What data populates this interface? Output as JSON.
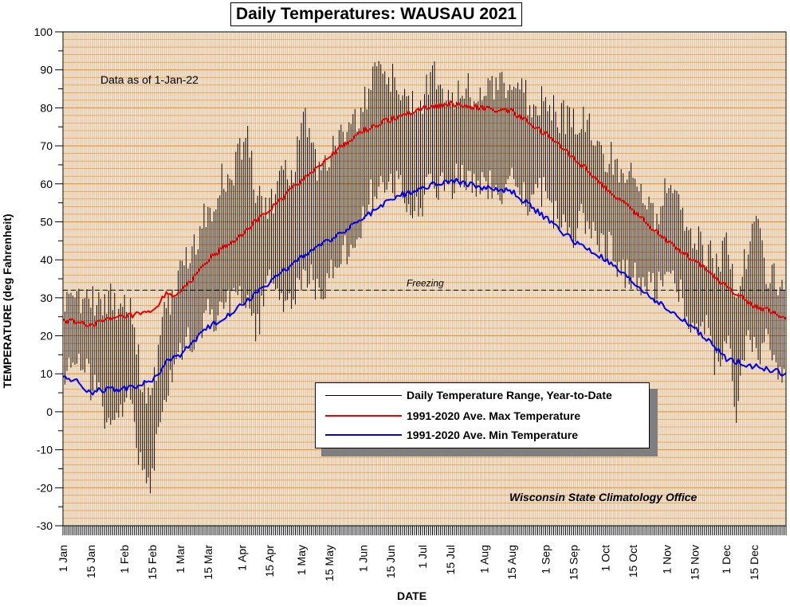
{
  "chart_data": {
    "type": "line",
    "title": "Daily Temperatures: WAUSAU 2021",
    "note": "Data as of 1-Jan-22",
    "credit": "Wisconsin State Climatology Office",
    "xlabel": "DATE",
    "ylabel": "TEMPERATURE (deg Fahrenheit)",
    "ylim": [
      -30,
      100
    ],
    "xlim_day_of_year": [
      1,
      365
    ],
    "grid": true,
    "y_ticks": [
      100,
      90,
      80,
      70,
      60,
      50,
      40,
      30,
      20,
      10,
      0,
      -10,
      -20,
      -30
    ],
    "x_ticks": [
      {
        "day": 1,
        "label": "1 Jan"
      },
      {
        "day": 15,
        "label": "15 Jan"
      },
      {
        "day": 32,
        "label": "1 Feb"
      },
      {
        "day": 46,
        "label": "15 Feb"
      },
      {
        "day": 60,
        "label": "1 Mar"
      },
      {
        "day": 74,
        "label": "15 Mar"
      },
      {
        "day": 91,
        "label": "1 Apr"
      },
      {
        "day": 105,
        "label": "15 Apr"
      },
      {
        "day": 121,
        "label": "1 May"
      },
      {
        "day": 135,
        "label": "15 May"
      },
      {
        "day": 152,
        "label": "1 Jun"
      },
      {
        "day": 166,
        "label": "15 Jun"
      },
      {
        "day": 182,
        "label": "1 Jul"
      },
      {
        "day": 196,
        "label": "15 Jul"
      },
      {
        "day": 213,
        "label": "1 Aug"
      },
      {
        "day": 227,
        "label": "15 Aug"
      },
      {
        "day": 244,
        "label": "1 Sep"
      },
      {
        "day": 258,
        "label": "15 Sep"
      },
      {
        "day": 274,
        "label": "1 Oct"
      },
      {
        "day": 288,
        "label": "15 Oct"
      },
      {
        "day": 305,
        "label": "1 Nov"
      },
      {
        "day": 319,
        "label": "15 Nov"
      },
      {
        "day": 335,
        "label": "1 Dec"
      },
      {
        "day": 349,
        "label": "15 Dec"
      }
    ],
    "reference_line": {
      "value": 32,
      "label": "Freezing"
    },
    "legend_placement": "bottom-center",
    "series": [
      {
        "name": "Daily Temperature Range, Year-to-Date",
        "color": "#000000",
        "kind": "daily-range",
        "anchors": [
          {
            "day": 1,
            "low": 10,
            "high": 27
          },
          {
            "day": 8,
            "low": 12,
            "high": 30
          },
          {
            "day": 15,
            "low": 8,
            "high": 30
          },
          {
            "day": 22,
            "low": 0,
            "high": 30
          },
          {
            "day": 28,
            "low": 2,
            "high": 28
          },
          {
            "day": 35,
            "low": 5,
            "high": 30
          },
          {
            "day": 40,
            "low": -15,
            "high": 10
          },
          {
            "day": 46,
            "low": -17,
            "high": 3
          },
          {
            "day": 50,
            "low": -3,
            "high": 20
          },
          {
            "day": 55,
            "low": 8,
            "high": 30
          },
          {
            "day": 60,
            "low": 18,
            "high": 35
          },
          {
            "day": 67,
            "low": 20,
            "high": 45
          },
          {
            "day": 74,
            "low": 25,
            "high": 52
          },
          {
            "day": 80,
            "low": 25,
            "high": 60
          },
          {
            "day": 88,
            "low": 30,
            "high": 65
          },
          {
            "day": 94,
            "low": 30,
            "high": 75
          },
          {
            "day": 98,
            "low": 22,
            "high": 55
          },
          {
            "day": 105,
            "low": 33,
            "high": 55
          },
          {
            "day": 112,
            "low": 30,
            "high": 62
          },
          {
            "day": 118,
            "low": 32,
            "high": 65
          },
          {
            "day": 122,
            "low": 35,
            "high": 78
          },
          {
            "day": 128,
            "low": 34,
            "high": 65
          },
          {
            "day": 135,
            "low": 35,
            "high": 68
          },
          {
            "day": 141,
            "low": 42,
            "high": 72
          },
          {
            "day": 148,
            "low": 46,
            "high": 75
          },
          {
            "day": 152,
            "low": 50,
            "high": 80
          },
          {
            "day": 157,
            "low": 58,
            "high": 90
          },
          {
            "day": 162,
            "low": 58,
            "high": 93
          },
          {
            "day": 166,
            "low": 60,
            "high": 88
          },
          {
            "day": 170,
            "low": 58,
            "high": 85
          },
          {
            "day": 176,
            "low": 55,
            "high": 82
          },
          {
            "day": 182,
            "low": 55,
            "high": 82
          },
          {
            "day": 187,
            "low": 60,
            "high": 88
          },
          {
            "day": 192,
            "low": 58,
            "high": 85
          },
          {
            "day": 196,
            "low": 60,
            "high": 82
          },
          {
            "day": 205,
            "low": 62,
            "high": 85
          },
          {
            "day": 213,
            "low": 60,
            "high": 85
          },
          {
            "day": 220,
            "low": 58,
            "high": 84
          },
          {
            "day": 227,
            "low": 60,
            "high": 86
          },
          {
            "day": 235,
            "low": 55,
            "high": 82
          },
          {
            "day": 244,
            "low": 58,
            "high": 82
          },
          {
            "day": 250,
            "low": 50,
            "high": 78
          },
          {
            "day": 258,
            "low": 48,
            "high": 76
          },
          {
            "day": 265,
            "low": 52,
            "high": 77
          },
          {
            "day": 274,
            "low": 44,
            "high": 68
          },
          {
            "day": 280,
            "low": 40,
            "high": 65
          },
          {
            "day": 288,
            "low": 35,
            "high": 60
          },
          {
            "day": 294,
            "low": 32,
            "high": 55
          },
          {
            "day": 300,
            "low": 34,
            "high": 52
          },
          {
            "day": 305,
            "low": 36,
            "high": 58
          },
          {
            "day": 310,
            "low": 35,
            "high": 60
          },
          {
            "day": 315,
            "low": 25,
            "high": 50
          },
          {
            "day": 319,
            "low": 22,
            "high": 45
          },
          {
            "day": 325,
            "low": 22,
            "high": 42
          },
          {
            "day": 330,
            "low": 12,
            "high": 40
          },
          {
            "day": 335,
            "low": 22,
            "high": 44
          },
          {
            "day": 340,
            "low": 0,
            "high": 30
          },
          {
            "day": 345,
            "low": 18,
            "high": 42
          },
          {
            "day": 350,
            "low": 15,
            "high": 50
          },
          {
            "day": 355,
            "low": 18,
            "high": 38
          },
          {
            "day": 360,
            "low": 10,
            "high": 35
          },
          {
            "day": 365,
            "low": 8,
            "high": 28
          }
        ]
      },
      {
        "name": "1991-2020 Ave. Max Temperature",
        "color": "#ee0000",
        "kind": "line",
        "anchors": [
          {
            "day": 1,
            "value": 24
          },
          {
            "day": 15,
            "value": 23
          },
          {
            "day": 32,
            "value": 25
          },
          {
            "day": 46,
            "value": 26
          },
          {
            "day": 53,
            "value": 31
          },
          {
            "day": 60,
            "value": 31
          },
          {
            "day": 74,
            "value": 40
          },
          {
            "day": 91,
            "value": 47
          },
          {
            "day": 105,
            "value": 53
          },
          {
            "day": 121,
            "value": 61
          },
          {
            "day": 135,
            "value": 67
          },
          {
            "day": 152,
            "value": 74
          },
          {
            "day": 166,
            "value": 77
          },
          {
            "day": 182,
            "value": 80
          },
          {
            "day": 196,
            "value": 81
          },
          {
            "day": 213,
            "value": 80
          },
          {
            "day": 227,
            "value": 79
          },
          {
            "day": 244,
            "value": 73
          },
          {
            "day": 258,
            "value": 67
          },
          {
            "day": 274,
            "value": 59
          },
          {
            "day": 288,
            "value": 53
          },
          {
            "day": 305,
            "value": 45
          },
          {
            "day": 319,
            "value": 40
          },
          {
            "day": 335,
            "value": 33
          },
          {
            "day": 349,
            "value": 28
          },
          {
            "day": 365,
            "value": 25
          }
        ]
      },
      {
        "name": "1991-2020 Ave. Min Temperature",
        "color": "#0000ee",
        "kind": "line",
        "anchors": [
          {
            "day": 1,
            "value": 9
          },
          {
            "day": 8,
            "value": 8
          },
          {
            "day": 15,
            "value": 5
          },
          {
            "day": 22,
            "value": 6
          },
          {
            "day": 32,
            "value": 6
          },
          {
            "day": 46,
            "value": 8
          },
          {
            "day": 53,
            "value": 13
          },
          {
            "day": 60,
            "value": 15
          },
          {
            "day": 74,
            "value": 22
          },
          {
            "day": 91,
            "value": 28
          },
          {
            "day": 105,
            "value": 34
          },
          {
            "day": 121,
            "value": 41
          },
          {
            "day": 135,
            "value": 45
          },
          {
            "day": 152,
            "value": 51
          },
          {
            "day": 166,
            "value": 56
          },
          {
            "day": 182,
            "value": 59
          },
          {
            "day": 196,
            "value": 61
          },
          {
            "day": 213,
            "value": 59
          },
          {
            "day": 227,
            "value": 58
          },
          {
            "day": 244,
            "value": 51
          },
          {
            "day": 258,
            "value": 45
          },
          {
            "day": 274,
            "value": 40
          },
          {
            "day": 288,
            "value": 34
          },
          {
            "day": 305,
            "value": 27
          },
          {
            "day": 319,
            "value": 22
          },
          {
            "day": 335,
            "value": 14
          },
          {
            "day": 349,
            "value": 12
          },
          {
            "day": 365,
            "value": 10
          }
        ]
      }
    ]
  },
  "colors": {
    "plot_background": "#fbe3c6",
    "grid_horizontal": "#f08c1e",
    "grid_vertical": "#b9b4ae"
  }
}
